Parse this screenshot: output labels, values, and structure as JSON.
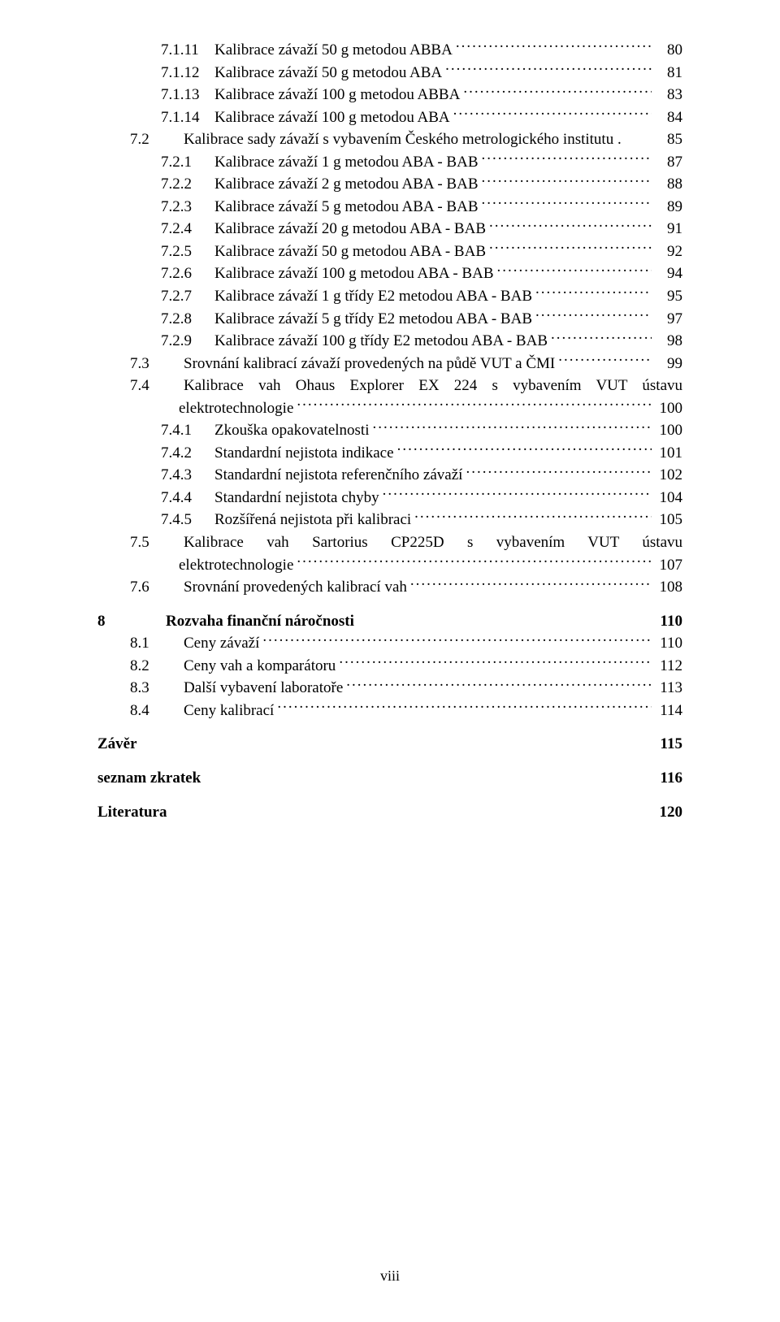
{
  "footer": "viii",
  "entries": [
    {
      "lvl": 2,
      "num": "7.1.11",
      "text": "Kalibrace závaží 50 g metodou ABBA",
      "page": "80"
    },
    {
      "lvl": 2,
      "num": "7.1.12",
      "text": "Kalibrace závaží 50 g metodou ABA",
      "page": "81"
    },
    {
      "lvl": 2,
      "num": "7.1.13",
      "text": "Kalibrace závaží 100 g metodou ABBA",
      "page": "83"
    },
    {
      "lvl": 2,
      "num": "7.1.14",
      "text": "Kalibrace závaží 100 g metodou ABA",
      "page": "84"
    },
    {
      "lvl": 1,
      "num": "7.2",
      "text": "Kalibrace sady závaží s vybavením Českého metrologického institutu .",
      "page": "85",
      "noLeaders": true
    },
    {
      "lvl": 2,
      "num": "7.2.1",
      "text": "Kalibrace závaží 1 g metodou ABA - BAB",
      "page": "87"
    },
    {
      "lvl": 2,
      "num": "7.2.2",
      "text": "Kalibrace závaží 2 g metodou ABA - BAB",
      "page": "88"
    },
    {
      "lvl": 2,
      "num": "7.2.3",
      "text": "Kalibrace závaží 5 g metodou ABA - BAB",
      "page": "89"
    },
    {
      "lvl": 2,
      "num": "7.2.4",
      "text": "Kalibrace závaží 20 g metodou ABA - BAB",
      "page": "91"
    },
    {
      "lvl": 2,
      "num": "7.2.5",
      "text": "Kalibrace závaží 50 g metodou ABA - BAB",
      "page": "92"
    },
    {
      "lvl": 2,
      "num": "7.2.6",
      "text": "Kalibrace závaží 100 g metodou ABA - BAB",
      "page": "94"
    },
    {
      "lvl": 2,
      "num": "7.2.7",
      "text": "Kalibrace závaží 1 g třídy E2 metodou ABA - BAB",
      "page": "95"
    },
    {
      "lvl": 2,
      "num": "7.2.8",
      "text": "Kalibrace závaží 5 g třídy E2 metodou ABA - BAB",
      "page": "97"
    },
    {
      "lvl": 2,
      "num": "7.2.9",
      "text": "Kalibrace závaží 100 g třídy E2 metodou ABA - BAB",
      "page": "98"
    },
    {
      "lvl": 1,
      "num": "7.3",
      "text": "Srovnání kalibrací závaží provedených na půdě VUT a ČMI",
      "page": "99"
    },
    {
      "lvl": 1,
      "num": "7.4",
      "wrap": true,
      "line1": "Kalibrace vah Ohaus Explorer EX 224 s vybavením VUT ústavu",
      "line2": "elektrotechnologie",
      "page": "100"
    },
    {
      "lvl": 2,
      "num": "7.4.1",
      "text": "Zkouška opakovatelnosti",
      "page": "100"
    },
    {
      "lvl": 2,
      "num": "7.4.2",
      "text": "Standardní nejistota indikace",
      "page": "101"
    },
    {
      "lvl": 2,
      "num": "7.4.3",
      "text": "Standardní nejistota referenčního závaží",
      "page": "102"
    },
    {
      "lvl": 2,
      "num": "7.4.4",
      "text": "Standardní nejistota chyby",
      "page": "104"
    },
    {
      "lvl": 2,
      "num": "7.4.5",
      "text": "Rozšířená nejistota při kalibraci",
      "page": "105"
    },
    {
      "lvl": 1,
      "num": "7.5",
      "wrap": true,
      "line1": "Kalibrace vah Sartorius CP225D s vybavením VUT ústavu",
      "line2": "elektrotechnologie",
      "page": "107"
    },
    {
      "lvl": 1,
      "num": "7.6",
      "text": "Srovnání provedených kalibrací vah",
      "page": "108"
    },
    {
      "gap": true
    },
    {
      "lvl": 0,
      "num": "8",
      "text": "Rozvaha finanční náročnosti",
      "page": "110",
      "bold": true,
      "noLeaders": true
    },
    {
      "lvl": 1,
      "num": "8.1",
      "text": "Ceny závaží",
      "page": "110"
    },
    {
      "lvl": 1,
      "num": "8.2",
      "text": "Ceny vah a komparátoru",
      "page": "112"
    },
    {
      "lvl": 1,
      "num": "8.3",
      "text": "Další vybavení laboratoře",
      "page": "113"
    },
    {
      "lvl": 1,
      "num": "8.4",
      "text": "Ceny kalibrací",
      "page": "114"
    },
    {
      "gap": true
    },
    {
      "standalone": true,
      "text": "Závěr",
      "page": "115"
    },
    {
      "gap": true
    },
    {
      "standalone": true,
      "text": "seznam zkratek",
      "page": "116"
    },
    {
      "gap": true
    },
    {
      "standalone": true,
      "text": "Literatura",
      "page": "120"
    }
  ]
}
